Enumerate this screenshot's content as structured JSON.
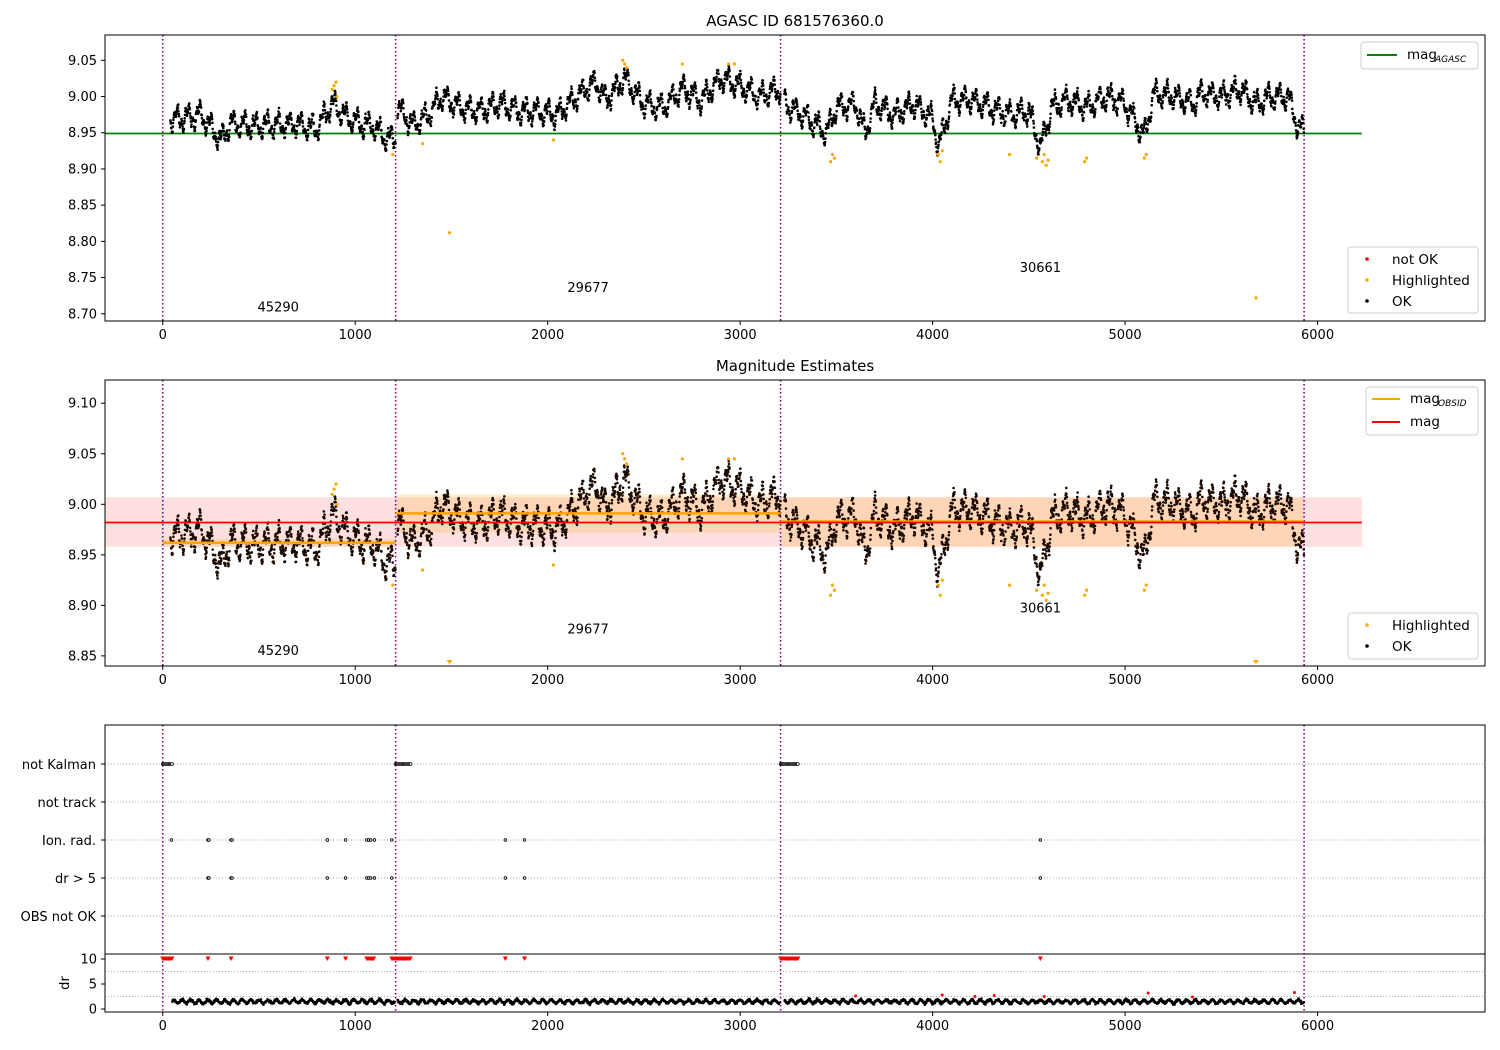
{
  "figure": {
    "panels": [
      {
        "title": "AGASC ID 681576360.0",
        "legend_lines": [
          {
            "label": "mag",
            "subscript": "AGASC",
            "color": "#008000"
          }
        ],
        "legend_points": [
          {
            "label": "not OK",
            "color": "#ff0000"
          },
          {
            "label": "Highlighted",
            "color": "#ffa500"
          },
          {
            "label": "OK",
            "color": "#000000"
          }
        ],
        "obsid_labels": [
          {
            "text": "45290",
            "x": 600,
            "y": 8.703
          },
          {
            "text": "29677",
            "x": 2210,
            "y": 8.73
          },
          {
            "text": "30661",
            "x": 4560,
            "y": 8.758
          }
        ]
      },
      {
        "title": "Magnitude Estimates",
        "legend_lines": [
          {
            "label": "mag",
            "subscript": "OBSID",
            "color": "#ffa500"
          },
          {
            "label": "mag",
            "subscript": "",
            "color": "#ff0000"
          }
        ],
        "legend_points": [
          {
            "label": "Highlighted",
            "color": "#ffa500"
          },
          {
            "label": "OK",
            "color": "#000000"
          }
        ],
        "obsid_labels": [
          {
            "text": "45290",
            "x": 600,
            "y": 8.851
          },
          {
            "text": "29677",
            "x": 2210,
            "y": 8.872
          },
          {
            "text": "30661",
            "x": 4560,
            "y": 8.893
          }
        ]
      },
      {
        "flag_labels": [
          "not Kalman",
          "not track",
          "Ion. rad.",
          "dr > 5",
          "OBS not OK"
        ],
        "dr_label": "dr"
      }
    ]
  },
  "chart_data": [
    {
      "type": "scatter",
      "title": "AGASC ID 681576360.0",
      "xlabel": "",
      "ylabel": "",
      "xlim": [
        -300,
        6870
      ],
      "ylim": [
        8.69,
        9.085
      ],
      "xticks": [
        0,
        1000,
        2000,
        3000,
        4000,
        5000,
        6000
      ],
      "yticks": [
        8.7,
        8.75,
        8.8,
        8.85,
        8.9,
        8.95,
        9.0,
        9.05
      ],
      "grid": false,
      "legend": [
        "upper right",
        "lower right"
      ],
      "obsid_boundaries": [
        0,
        1210,
        3210,
        5930
      ],
      "mag_agasc": {
        "value": 8.949,
        "x_range": [
          -300,
          6230
        ]
      },
      "segments": [
        {
          "obsid": "45290",
          "x_range": [
            40,
            1210
          ],
          "trend": [
            [
              40,
              8.968
            ],
            [
              100,
              8.97
            ],
            [
              200,
              8.975
            ],
            [
              300,
              8.94
            ],
            [
              350,
              8.962
            ],
            [
              500,
              8.96
            ],
            [
              700,
              8.962
            ],
            [
              800,
              8.955
            ],
            [
              880,
              8.99
            ],
            [
              950,
              8.972
            ],
            [
              1000,
              8.965
            ],
            [
              1100,
              8.958
            ],
            [
              1150,
              8.945
            ],
            [
              1205,
              8.94
            ]
          ]
        },
        {
          "obsid": "29677",
          "x_range": [
            1220,
            3210
          ],
          "trend": [
            [
              1220,
              8.985
            ],
            [
              1300,
              8.96
            ],
            [
              1380,
              8.975
            ],
            [
              1450,
              9.0
            ],
            [
              1550,
              8.985
            ],
            [
              1650,
              8.98
            ],
            [
              1750,
              8.99
            ],
            [
              1850,
              8.98
            ],
            [
              1950,
              8.98
            ],
            [
              2050,
              8.975
            ],
            [
              2150,
              9.0
            ],
            [
              2250,
              9.02
            ],
            [
              2300,
              8.995
            ],
            [
              2400,
              9.025
            ],
            [
              2500,
              8.99
            ],
            [
              2600,
              8.985
            ],
            [
              2700,
              9.01
            ],
            [
              2800,
              8.995
            ],
            [
              2900,
              9.025
            ],
            [
              3000,
              9.015
            ],
            [
              3100,
              9.0
            ],
            [
              3200,
              9.01
            ]
          ]
        },
        {
          "obsid": "30661",
          "x_range": [
            3230,
            5930
          ],
          "trend": [
            [
              3230,
              8.99
            ],
            [
              3350,
              8.97
            ],
            [
              3450,
              8.95
            ],
            [
              3500,
              8.985
            ],
            [
              3600,
              8.99
            ],
            [
              3650,
              8.95
            ],
            [
              3700,
              8.99
            ],
            [
              3800,
              8.975
            ],
            [
              3900,
              8.99
            ],
            [
              4000,
              8.97
            ],
            [
              4030,
              8.93
            ],
            [
              4100,
              8.995
            ],
            [
              4200,
              8.995
            ],
            [
              4300,
              8.985
            ],
            [
              4400,
              8.975
            ],
            [
              4500,
              8.98
            ],
            [
              4560,
              8.93
            ],
            [
              4620,
              8.985
            ],
            [
              4700,
              8.995
            ],
            [
              4800,
              8.985
            ],
            [
              4900,
              9.0
            ],
            [
              5000,
              8.99
            ],
            [
              5100,
              8.945
            ],
            [
              5150,
              9.005
            ],
            [
              5250,
              9.0
            ],
            [
              5350,
              8.99
            ],
            [
              5400,
              9.005
            ],
            [
              5500,
              9.0
            ],
            [
              5600,
              9.01
            ],
            [
              5680,
              8.99
            ],
            [
              5750,
              9.0
            ],
            [
              5850,
              9.0
            ],
            [
              5900,
              8.955
            ]
          ]
        }
      ],
      "highlighted_points": [
        [
          880,
          9.01
        ],
        [
          890,
          9.015
        ],
        [
          900,
          9.02
        ],
        [
          905,
          9.0
        ],
        [
          1195,
          8.92
        ],
        [
          1350,
          8.935
        ],
        [
          1490,
          8.812
        ],
        [
          2030,
          8.94
        ],
        [
          2390,
          9.05
        ],
        [
          2400,
          9.045
        ],
        [
          2410,
          9.04
        ],
        [
          2700,
          9.045
        ],
        [
          2940,
          9.045
        ],
        [
          2970,
          9.045
        ],
        [
          3470,
          8.91
        ],
        [
          3480,
          8.92
        ],
        [
          3490,
          8.915
        ],
        [
          4030,
          8.92
        ],
        [
          4040,
          8.91
        ],
        [
          4050,
          8.925
        ],
        [
          4400,
          8.92
        ],
        [
          4540,
          8.915
        ],
        [
          4570,
          8.91
        ],
        [
          4580,
          8.92
        ],
        [
          4590,
          8.905
        ],
        [
          4600,
          8.912
        ],
        [
          4790,
          8.91
        ],
        [
          4800,
          8.915
        ],
        [
          5100,
          8.915
        ],
        [
          5110,
          8.92
        ],
        [
          5680,
          8.722
        ]
      ]
    },
    {
      "type": "scatter",
      "title": "Magnitude Estimates",
      "xlabel": "",
      "ylabel": "",
      "xlim": [
        -300,
        6870
      ],
      "ylim": [
        8.84,
        9.123
      ],
      "xticks": [
        0,
        1000,
        2000,
        3000,
        4000,
        5000,
        6000
      ],
      "yticks": [
        8.85,
        8.9,
        8.95,
        9.0,
        9.05,
        9.1
      ],
      "grid": false,
      "legend": [
        "upper right",
        "lower right"
      ],
      "mag": {
        "value": 8.982,
        "band": [
          8.958,
          9.007
        ],
        "x_range": [
          -300,
          6230
        ]
      },
      "mag_obsid": [
        {
          "obsid": "45290",
          "x_range": [
            0,
            1210
          ],
          "value": 8.962,
          "band": [
            8.958,
            8.966
          ]
        },
        {
          "obsid": "29677",
          "x_range": [
            1210,
            3210
          ],
          "value": 8.991,
          "band": [
            8.972,
            9.01
          ]
        },
        {
          "obsid": "30661",
          "x_range": [
            3210,
            5930
          ],
          "value": 8.983,
          "band": [
            8.958,
            9.007
          ]
        }
      ],
      "out_of_range_markers": [
        1490,
        5680
      ]
    },
    {
      "type": "scatter",
      "title": "",
      "categories": [
        "not Kalman",
        "not track",
        "Ion. rad.",
        "dr > 5",
        "OBS not OK"
      ],
      "flags": {
        "not Kalman": [
          [
            0,
            50
          ],
          [
            1210,
            1290
          ],
          [
            3210,
            3300
          ]
        ],
        "not track": [],
        "Ion. rad.": [
          45,
          235,
          240,
          355,
          360,
          855,
          950,
          1060,
          1070,
          1080,
          1100,
          1190,
          1780,
          1880,
          4560
        ],
        "dr > 5": [
          235,
          240,
          355,
          360,
          855,
          950,
          1060,
          1070,
          1080,
          1100,
          1190,
          1780,
          1880,
          4560
        ],
        "OBS not OK": []
      },
      "dr": {
        "ylabel": "dr",
        "ylim": [
          -0.6,
          11
        ],
        "yticks": [
          0,
          5,
          10
        ],
        "typical": 1.5,
        "x_range": [
          50,
          5930
        ],
        "clipped_at_10": [
          [
            0,
            50
          ],
          [
            235,
            240
          ],
          [
            355,
            360
          ],
          [
            855,
            855
          ],
          [
            950,
            950
          ],
          [
            1060,
            1100
          ],
          [
            1190,
            1290
          ],
          [
            1780,
            1780
          ],
          [
            1880,
            1880
          ],
          [
            3210,
            3300
          ],
          [
            4560,
            4560
          ]
        ],
        "red_points": [
          [
            3600,
            2.6
          ],
          [
            4050,
            2.8
          ],
          [
            4220,
            2.5
          ],
          [
            4320,
            2.7
          ],
          [
            4580,
            2.5
          ],
          [
            5120,
            3.2
          ],
          [
            5350,
            2.4
          ],
          [
            5880,
            3.3
          ]
        ]
      }
    }
  ]
}
